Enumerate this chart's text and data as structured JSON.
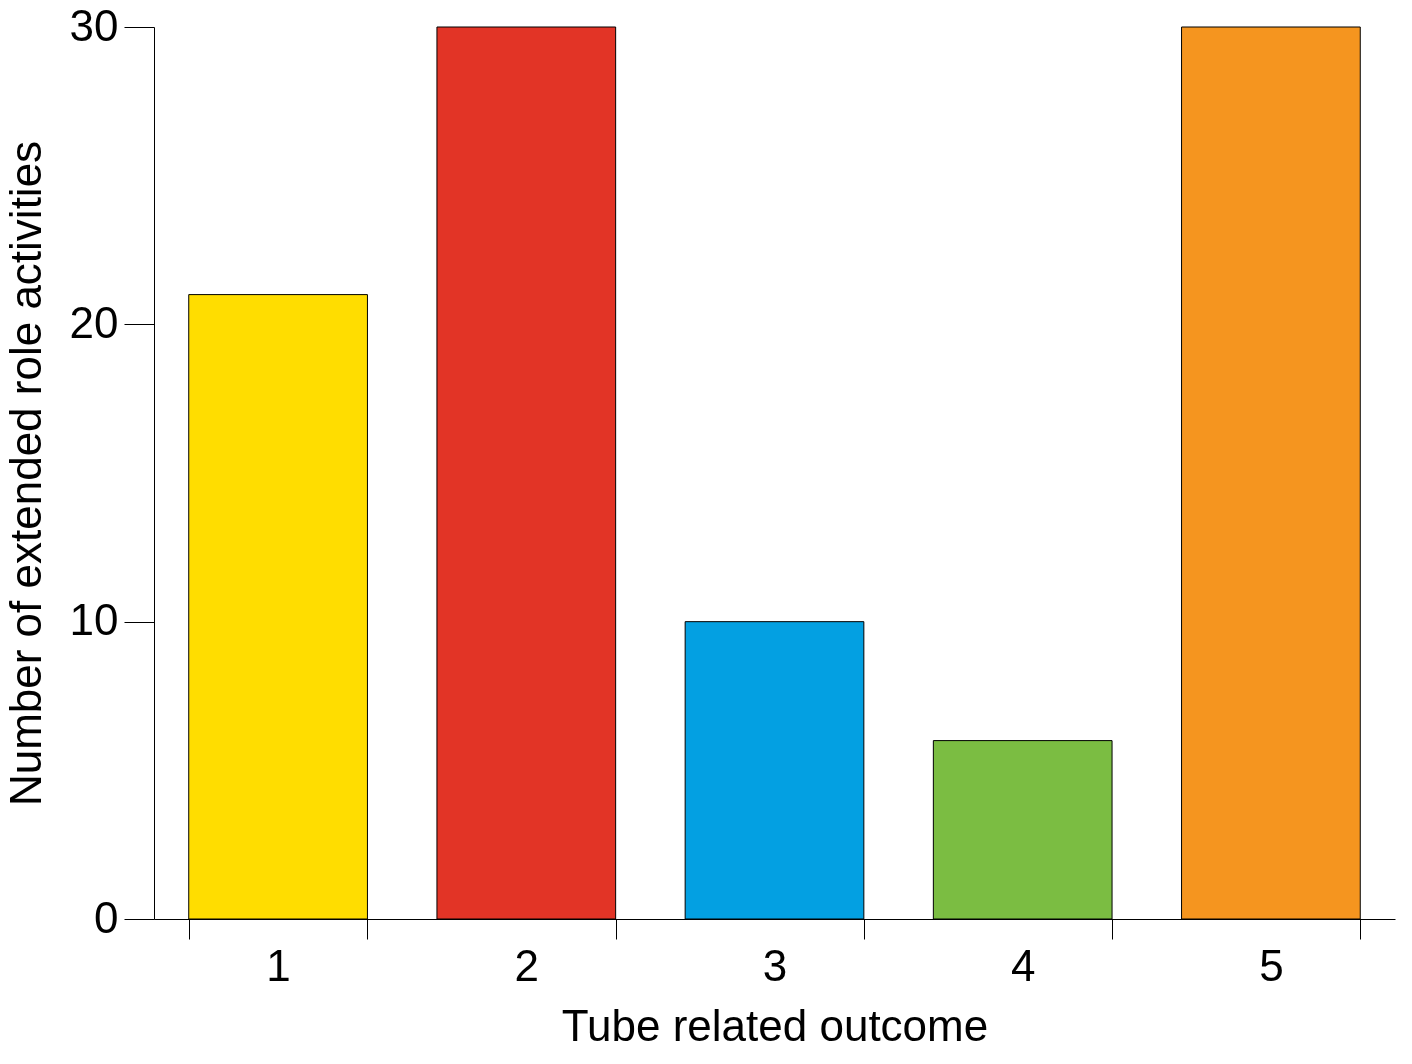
{
  "chart_data": {
    "type": "bar",
    "xlabel": "Tube related outcome",
    "ylabel": "Number of extended role activities",
    "categories": [
      "1",
      "2",
      "3",
      "4",
      "5"
    ],
    "values": [
      21,
      30,
      10,
      6,
      30
    ],
    "colors": [
      "#ffdd00",
      "#e23426",
      "#03a0e2",
      "#7bbd42",
      "#f5951f"
    ],
    "ylim": [
      0,
      30
    ],
    "yticks": [
      0,
      10,
      20,
      30
    ],
    "grid": false,
    "legend": false
  }
}
